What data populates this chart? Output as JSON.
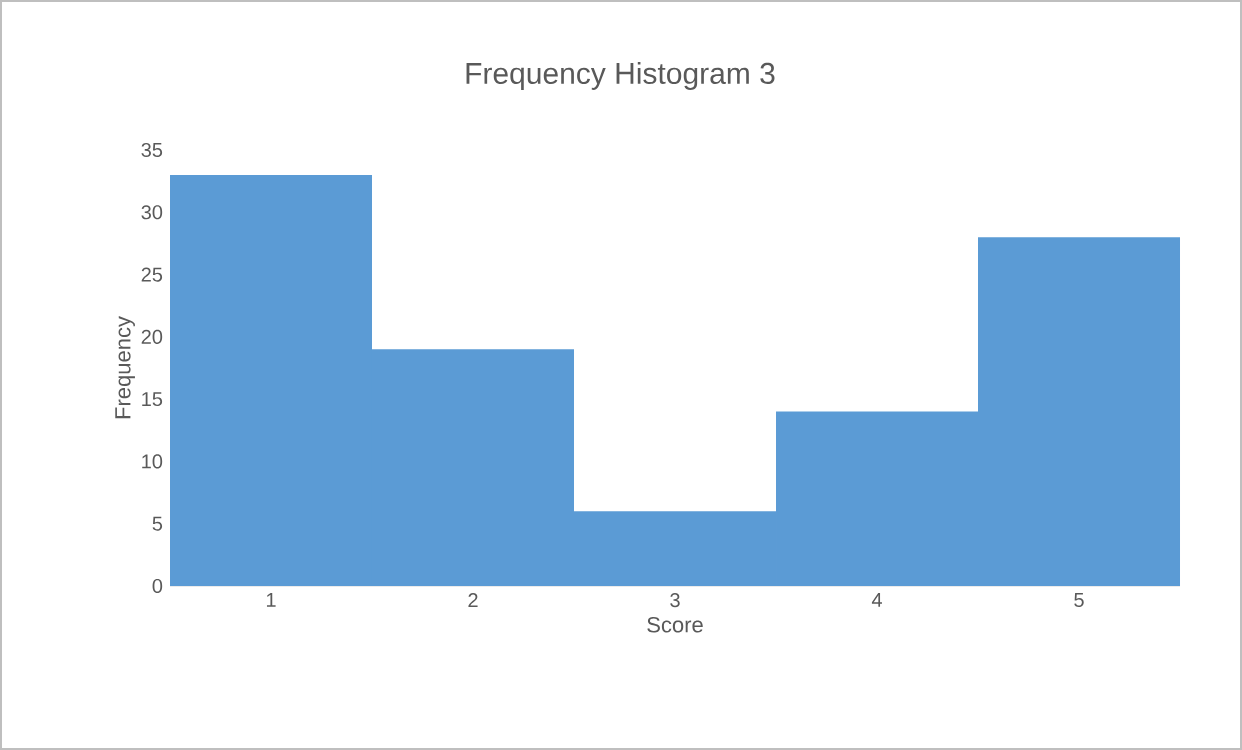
{
  "chart_data": {
    "type": "bar",
    "title": "Frequency Histogram 3",
    "xlabel": "Score",
    "ylabel": "Frequency",
    "categories": [
      "1",
      "2",
      "3",
      "4",
      "5"
    ],
    "values": [
      33,
      19,
      6,
      14,
      28
    ],
    "color": "#5b9bd5",
    "ylim": [
      0,
      35
    ],
    "yticks": [
      0,
      5,
      10,
      15,
      20,
      25,
      30,
      35
    ],
    "grid": false
  }
}
